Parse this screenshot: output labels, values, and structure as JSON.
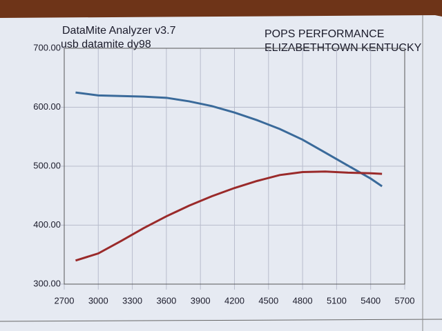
{
  "chart_data": {
    "type": "line",
    "title_lines": [
      "DataMite Analyzer v3.7",
      "usb datamite dy98"
    ],
    "header_lines": [
      "POPS PERFORMANCE",
      "ELIZABETHTOWN KENTUCKY"
    ],
    "x": [
      2800,
      3000,
      3200,
      3400,
      3600,
      3800,
      4000,
      4200,
      4400,
      4600,
      4800,
      5000,
      5200,
      5400,
      5500
    ],
    "series": [
      {
        "color": "#3a6a9a",
        "values": [
          625,
          620,
          619,
          618,
          616,
          610,
          602,
          591,
          578,
          563,
          545,
          523,
          501,
          479,
          466
        ]
      },
      {
        "color": "#9a2a2a",
        "values": [
          340,
          352,
          373,
          395,
          415,
          433,
          449,
          463,
          475,
          485,
          490,
          491,
          489,
          488,
          487
        ]
      }
    ],
    "xlim": [
      2700,
      5700
    ],
    "xticks": [
      2700,
      3000,
      3300,
      3600,
      3900,
      4200,
      4500,
      4800,
      5100,
      5400,
      5700
    ],
    "ylim": [
      300,
      700
    ],
    "yticks": [
      {
        "value": 300,
        "label": "300.00"
      },
      {
        "value": 400,
        "label": "400.00"
      },
      {
        "value": 500,
        "label": "500.00"
      },
      {
        "value": 600,
        "label": "600.00"
      },
      {
        "value": 700,
        "label": "700.00"
      }
    ],
    "grid": true
  }
}
